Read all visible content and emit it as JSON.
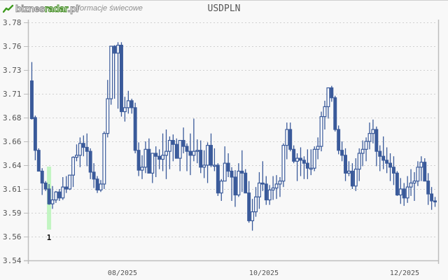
{
  "header": {
    "logo": {
      "part1": "biznes",
      "part2": "radar",
      "part3": ".pl"
    },
    "subtitle": "formacje świecowe",
    "title": "USDPLN"
  },
  "colors": {
    "candle": "#3a5a9a",
    "grid": "#d0d0d0",
    "axis": "#bdbdbd",
    "highlight": "#b8f5b8",
    "background": "#f8f8f8"
  },
  "chart_data": {
    "type": "candlestick",
    "title": "USDPLN",
    "xlabel": "",
    "ylabel": "",
    "ylim": [
      3.54,
      3.78
    ],
    "y_ticks": [
      "3.78",
      "3.76",
      "3.73",
      "3.71",
      "3.68",
      "3.66",
      "3.64",
      "3.61",
      "3.59",
      "3.56",
      "3.54"
    ],
    "x_ticks": [
      {
        "label": "08/2025",
        "x": 175
      },
      {
        "label": "10/2025",
        "x": 377
      },
      {
        "label": "12/2025",
        "x": 578
      }
    ],
    "grid": true,
    "annotations": [
      {
        "label": "1",
        "candle_index": 5,
        "note": "highlighted candle pattern"
      }
    ],
    "candles": [
      {
        "o": 3.721,
        "h": 3.74,
        "l": 3.682,
        "c": 3.683
      },
      {
        "o": 3.684,
        "h": 3.686,
        "l": 3.641,
        "c": 3.651
      },
      {
        "o": 3.651,
        "h": 3.653,
        "l": 3.63,
        "c": 3.63
      },
      {
        "o": 3.63,
        "h": 3.633,
        "l": 3.606,
        "c": 3.618
      },
      {
        "o": 3.618,
        "h": 3.62,
        "l": 3.61,
        "c": 3.612
      },
      {
        "o": 3.612,
        "h": 3.617,
        "l": 3.596,
        "c": 3.597
      },
      {
        "o": 3.597,
        "h": 3.615,
        "l": 3.592,
        "c": 3.601
      },
      {
        "o": 3.601,
        "h": 3.61,
        "l": 3.598,
        "c": 3.609
      },
      {
        "o": 3.609,
        "h": 3.612,
        "l": 3.6,
        "c": 3.603
      },
      {
        "o": 3.603,
        "h": 3.624,
        "l": 3.601,
        "c": 3.614
      },
      {
        "o": 3.614,
        "h": 3.625,
        "l": 3.608,
        "c": 3.612
      },
      {
        "o": 3.612,
        "h": 3.625,
        "l": 3.611,
        "c": 3.626
      },
      {
        "o": 3.626,
        "h": 3.645,
        "l": 3.614,
        "c": 3.644
      },
      {
        "o": 3.644,
        "h": 3.657,
        "l": 3.64,
        "c": 3.646
      },
      {
        "o": 3.646,
        "h": 3.664,
        "l": 3.634,
        "c": 3.658
      },
      {
        "o": 3.658,
        "h": 3.666,
        "l": 3.645,
        "c": 3.654
      },
      {
        "o": 3.654,
        "h": 3.668,
        "l": 3.635,
        "c": 3.65
      },
      {
        "o": 3.65,
        "h": 3.653,
        "l": 3.622,
        "c": 3.629
      },
      {
        "o": 3.629,
        "h": 3.638,
        "l": 3.613,
        "c": 3.622
      },
      {
        "o": 3.622,
        "h": 3.625,
        "l": 3.608,
        "c": 3.611
      },
      {
        "o": 3.611,
        "h": 3.621,
        "l": 3.609,
        "c": 3.617
      },
      {
        "o": 3.617,
        "h": 3.67,
        "l": 3.612,
        "c": 3.668
      },
      {
        "o": 3.668,
        "h": 3.722,
        "l": 3.664,
        "c": 3.703
      },
      {
        "o": 3.703,
        "h": 3.754,
        "l": 3.697,
        "c": 3.756
      },
      {
        "o": 3.756,
        "h": 3.757,
        "l": 3.703,
        "c": 3.749
      },
      {
        "o": 3.749,
        "h": 3.76,
        "l": 3.693,
        "c": 3.757
      },
      {
        "o": 3.757,
        "h": 3.76,
        "l": 3.685,
        "c": 3.69
      },
      {
        "o": 3.69,
        "h": 3.705,
        "l": 3.68,
        "c": 3.694
      },
      {
        "o": 3.694,
        "h": 3.711,
        "l": 3.688,
        "c": 3.701
      },
      {
        "o": 3.701,
        "h": 3.703,
        "l": 3.688,
        "c": 3.694
      },
      {
        "o": 3.694,
        "h": 3.699,
        "l": 3.648,
        "c": 3.651
      },
      {
        "o": 3.651,
        "h": 3.659,
        "l": 3.625,
        "c": 3.631
      },
      {
        "o": 3.631,
        "h": 3.646,
        "l": 3.622,
        "c": 3.634
      },
      {
        "o": 3.634,
        "h": 3.66,
        "l": 3.628,
        "c": 3.652
      },
      {
        "o": 3.652,
        "h": 3.663,
        "l": 3.632,
        "c": 3.628
      },
      {
        "o": 3.628,
        "h": 3.641,
        "l": 3.618,
        "c": 3.648
      },
      {
        "o": 3.648,
        "h": 3.655,
        "l": 3.624,
        "c": 3.645
      },
      {
        "o": 3.645,
        "h": 3.652,
        "l": 3.632,
        "c": 3.642
      },
      {
        "o": 3.642,
        "h": 3.668,
        "l": 3.63,
        "c": 3.646
      },
      {
        "o": 3.646,
        "h": 3.672,
        "l": 3.622,
        "c": 3.65
      },
      {
        "o": 3.65,
        "h": 3.665,
        "l": 3.632,
        "c": 3.661
      },
      {
        "o": 3.661,
        "h": 3.667,
        "l": 3.64,
        "c": 3.657
      },
      {
        "o": 3.657,
        "h": 3.663,
        "l": 3.648,
        "c": 3.643
      },
      {
        "o": 3.643,
        "h": 3.659,
        "l": 3.63,
        "c": 3.661
      },
      {
        "o": 3.661,
        "h": 3.674,
        "l": 3.648,
        "c": 3.655
      },
      {
        "o": 3.655,
        "h": 3.658,
        "l": 3.63,
        "c": 3.65
      },
      {
        "o": 3.65,
        "h": 3.668,
        "l": 3.626,
        "c": 3.646
      },
      {
        "o": 3.646,
        "h": 3.683,
        "l": 3.64,
        "c": 3.65
      },
      {
        "o": 3.65,
        "h": 3.662,
        "l": 3.638,
        "c": 3.651
      },
      {
        "o": 3.651,
        "h": 3.661,
        "l": 3.628,
        "c": 3.634
      },
      {
        "o": 3.634,
        "h": 3.651,
        "l": 3.623,
        "c": 3.636
      },
      {
        "o": 3.636,
        "h": 3.659,
        "l": 3.618,
        "c": 3.656
      },
      {
        "o": 3.656,
        "h": 3.668,
        "l": 3.634,
        "c": 3.636
      },
      {
        "o": 3.636,
        "h": 3.653,
        "l": 3.63,
        "c": 3.636
      },
      {
        "o": 3.636,
        "h": 3.638,
        "l": 3.605,
        "c": 3.608
      },
      {
        "o": 3.608,
        "h": 3.622,
        "l": 3.6,
        "c": 3.62
      },
      {
        "o": 3.62,
        "h": 3.655,
        "l": 3.62,
        "c": 3.638
      },
      {
        "o": 3.638,
        "h": 3.648,
        "l": 3.624,
        "c": 3.63
      },
      {
        "o": 3.63,
        "h": 3.634,
        "l": 3.6,
        "c": 3.624
      },
      {
        "o": 3.624,
        "h": 3.631,
        "l": 3.594,
        "c": 3.606
      },
      {
        "o": 3.606,
        "h": 3.638,
        "l": 3.604,
        "c": 3.63
      },
      {
        "o": 3.63,
        "h": 3.651,
        "l": 3.609,
        "c": 3.628
      },
      {
        "o": 3.628,
        "h": 3.632,
        "l": 3.614,
        "c": 3.608
      },
      {
        "o": 3.608,
        "h": 3.62,
        "l": 3.578,
        "c": 3.58
      },
      {
        "o": 3.58,
        "h": 3.602,
        "l": 3.57,
        "c": 3.589
      },
      {
        "o": 3.589,
        "h": 3.614,
        "l": 3.584,
        "c": 3.604
      },
      {
        "o": 3.604,
        "h": 3.629,
        "l": 3.592,
        "c": 3.618
      },
      {
        "o": 3.618,
        "h": 3.64,
        "l": 3.61,
        "c": 3.617
      },
      {
        "o": 3.617,
        "h": 3.625,
        "l": 3.596,
        "c": 3.601
      },
      {
        "o": 3.601,
        "h": 3.616,
        "l": 3.596,
        "c": 3.611
      },
      {
        "o": 3.611,
        "h": 3.625,
        "l": 3.601,
        "c": 3.613
      },
      {
        "o": 3.613,
        "h": 3.626,
        "l": 3.602,
        "c": 3.617
      },
      {
        "o": 3.617,
        "h": 3.624,
        "l": 3.604,
        "c": 3.62
      },
      {
        "o": 3.62,
        "h": 3.658,
        "l": 3.614,
        "c": 3.656
      },
      {
        "o": 3.656,
        "h": 3.679,
        "l": 3.642,
        "c": 3.672
      },
      {
        "o": 3.672,
        "h": 3.679,
        "l": 3.65,
        "c": 3.652
      },
      {
        "o": 3.652,
        "h": 3.656,
        "l": 3.638,
        "c": 3.64
      },
      {
        "o": 3.64,
        "h": 3.648,
        "l": 3.62,
        "c": 3.643
      },
      {
        "o": 3.643,
        "h": 3.654,
        "l": 3.625,
        "c": 3.641
      },
      {
        "o": 3.641,
        "h": 3.645,
        "l": 3.622,
        "c": 3.638
      },
      {
        "o": 3.638,
        "h": 3.652,
        "l": 3.622,
        "c": 3.633
      },
      {
        "o": 3.633,
        "h": 3.652,
        "l": 3.626,
        "c": 3.633
      },
      {
        "o": 3.633,
        "h": 3.655,
        "l": 3.63,
        "c": 3.652
      },
      {
        "o": 3.652,
        "h": 3.664,
        "l": 3.642,
        "c": 3.655
      },
      {
        "o": 3.655,
        "h": 3.69,
        "l": 3.65,
        "c": 3.685
      },
      {
        "o": 3.685,
        "h": 3.701,
        "l": 3.672,
        "c": 3.695
      },
      {
        "o": 3.695,
        "h": 3.712,
        "l": 3.683,
        "c": 3.714
      },
      {
        "o": 3.714,
        "h": 3.716,
        "l": 3.7,
        "c": 3.704
      },
      {
        "o": 3.704,
        "h": 3.706,
        "l": 3.67,
        "c": 3.672
      },
      {
        "o": 3.672,
        "h": 3.676,
        "l": 3.647,
        "c": 3.651
      },
      {
        "o": 3.651,
        "h": 3.66,
        "l": 3.64,
        "c": 3.646
      },
      {
        "o": 3.646,
        "h": 3.653,
        "l": 3.62,
        "c": 3.628
      },
      {
        "o": 3.628,
        "h": 3.64,
        "l": 3.625,
        "c": 3.63
      },
      {
        "o": 3.63,
        "h": 3.638,
        "l": 3.612,
        "c": 3.615
      },
      {
        "o": 3.615,
        "h": 3.643,
        "l": 3.61,
        "c": 3.632
      },
      {
        "o": 3.632,
        "h": 3.653,
        "l": 3.62,
        "c": 3.648
      },
      {
        "o": 3.648,
        "h": 3.661,
        "l": 3.635,
        "c": 3.652
      },
      {
        "o": 3.652,
        "h": 3.664,
        "l": 3.64,
        "c": 3.66
      },
      {
        "o": 3.66,
        "h": 3.679,
        "l": 3.652,
        "c": 3.668
      },
      {
        "o": 3.668,
        "h": 3.682,
        "l": 3.658,
        "c": 3.672
      },
      {
        "o": 3.672,
        "h": 3.675,
        "l": 3.635,
        "c": 3.65
      },
      {
        "o": 3.65,
        "h": 3.656,
        "l": 3.63,
        "c": 3.645
      },
      {
        "o": 3.645,
        "h": 3.665,
        "l": 3.632,
        "c": 3.641
      },
      {
        "o": 3.641,
        "h": 3.654,
        "l": 3.628,
        "c": 3.638
      },
      {
        "o": 3.638,
        "h": 3.648,
        "l": 3.62,
        "c": 3.634
      },
      {
        "o": 3.634,
        "h": 3.645,
        "l": 3.616,
        "c": 3.628
      },
      {
        "o": 3.628,
        "h": 3.63,
        "l": 3.605,
        "c": 3.606
      },
      {
        "o": 3.606,
        "h": 3.623,
        "l": 3.597,
        "c": 3.612
      },
      {
        "o": 3.612,
        "h": 3.618,
        "l": 3.595,
        "c": 3.603
      },
      {
        "o": 3.603,
        "h": 3.625,
        "l": 3.598,
        "c": 3.614
      },
      {
        "o": 3.614,
        "h": 3.632,
        "l": 3.605,
        "c": 3.618
      },
      {
        "o": 3.618,
        "h": 3.629,
        "l": 3.6,
        "c": 3.62
      },
      {
        "o": 3.62,
        "h": 3.64,
        "l": 3.615,
        "c": 3.634
      },
      {
        "o": 3.634,
        "h": 3.645,
        "l": 3.62,
        "c": 3.639
      },
      {
        "o": 3.639,
        "h": 3.643,
        "l": 3.624,
        "c": 3.62
      },
      {
        "o": 3.62,
        "h": 3.628,
        "l": 3.596,
        "c": 3.607
      },
      {
        "o": 3.607,
        "h": 3.614,
        "l": 3.591,
        "c": 3.6
      },
      {
        "o": 3.6,
        "h": 3.604,
        "l": 3.594,
        "c": 3.599
      }
    ]
  }
}
